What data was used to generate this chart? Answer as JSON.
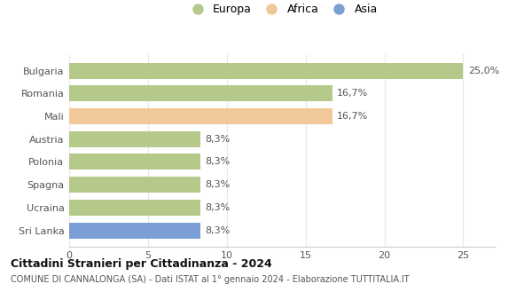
{
  "categories": [
    "Sri Lanka",
    "Ucraina",
    "Spagna",
    "Polonia",
    "Austria",
    "Mali",
    "Romania",
    "Bulgaria"
  ],
  "values": [
    8.3,
    8.3,
    8.3,
    8.3,
    8.3,
    16.7,
    16.7,
    25.0
  ],
  "colors": [
    "#7b9fd4",
    "#b5c98a",
    "#b5c98a",
    "#b5c98a",
    "#b5c98a",
    "#f0c89a",
    "#b5c98a",
    "#b5c98a"
  ],
  "labels": [
    "8,3%",
    "8,3%",
    "8,3%",
    "8,3%",
    "8,3%",
    "16,7%",
    "16,7%",
    "25,0%"
  ],
  "legend_items": [
    {
      "label": "Europa",
      "color": "#b5c98a"
    },
    {
      "label": "Africa",
      "color": "#f0c89a"
    },
    {
      "label": "Asia",
      "color": "#7b9fd4"
    }
  ],
  "xlim": [
    0,
    27
  ],
  "xticks": [
    0,
    5,
    10,
    15,
    20,
    25
  ],
  "title_bold": "Cittadini Stranieri per Cittadinanza - 2024",
  "subtitle": "COMUNE DI CANNALONGA (SA) - Dati ISTAT al 1° gennaio 2024 - Elaborazione TUTTITALIA.IT",
  "bar_height": 0.7,
  "label_fontsize": 8,
  "tick_fontsize": 8,
  "ylabel_fontsize": 8,
  "background_color": "#ffffff",
  "grid_color": "#e8e8e8",
  "text_color": "#555555",
  "title_color": "#111111",
  "subtitle_color": "#555555"
}
